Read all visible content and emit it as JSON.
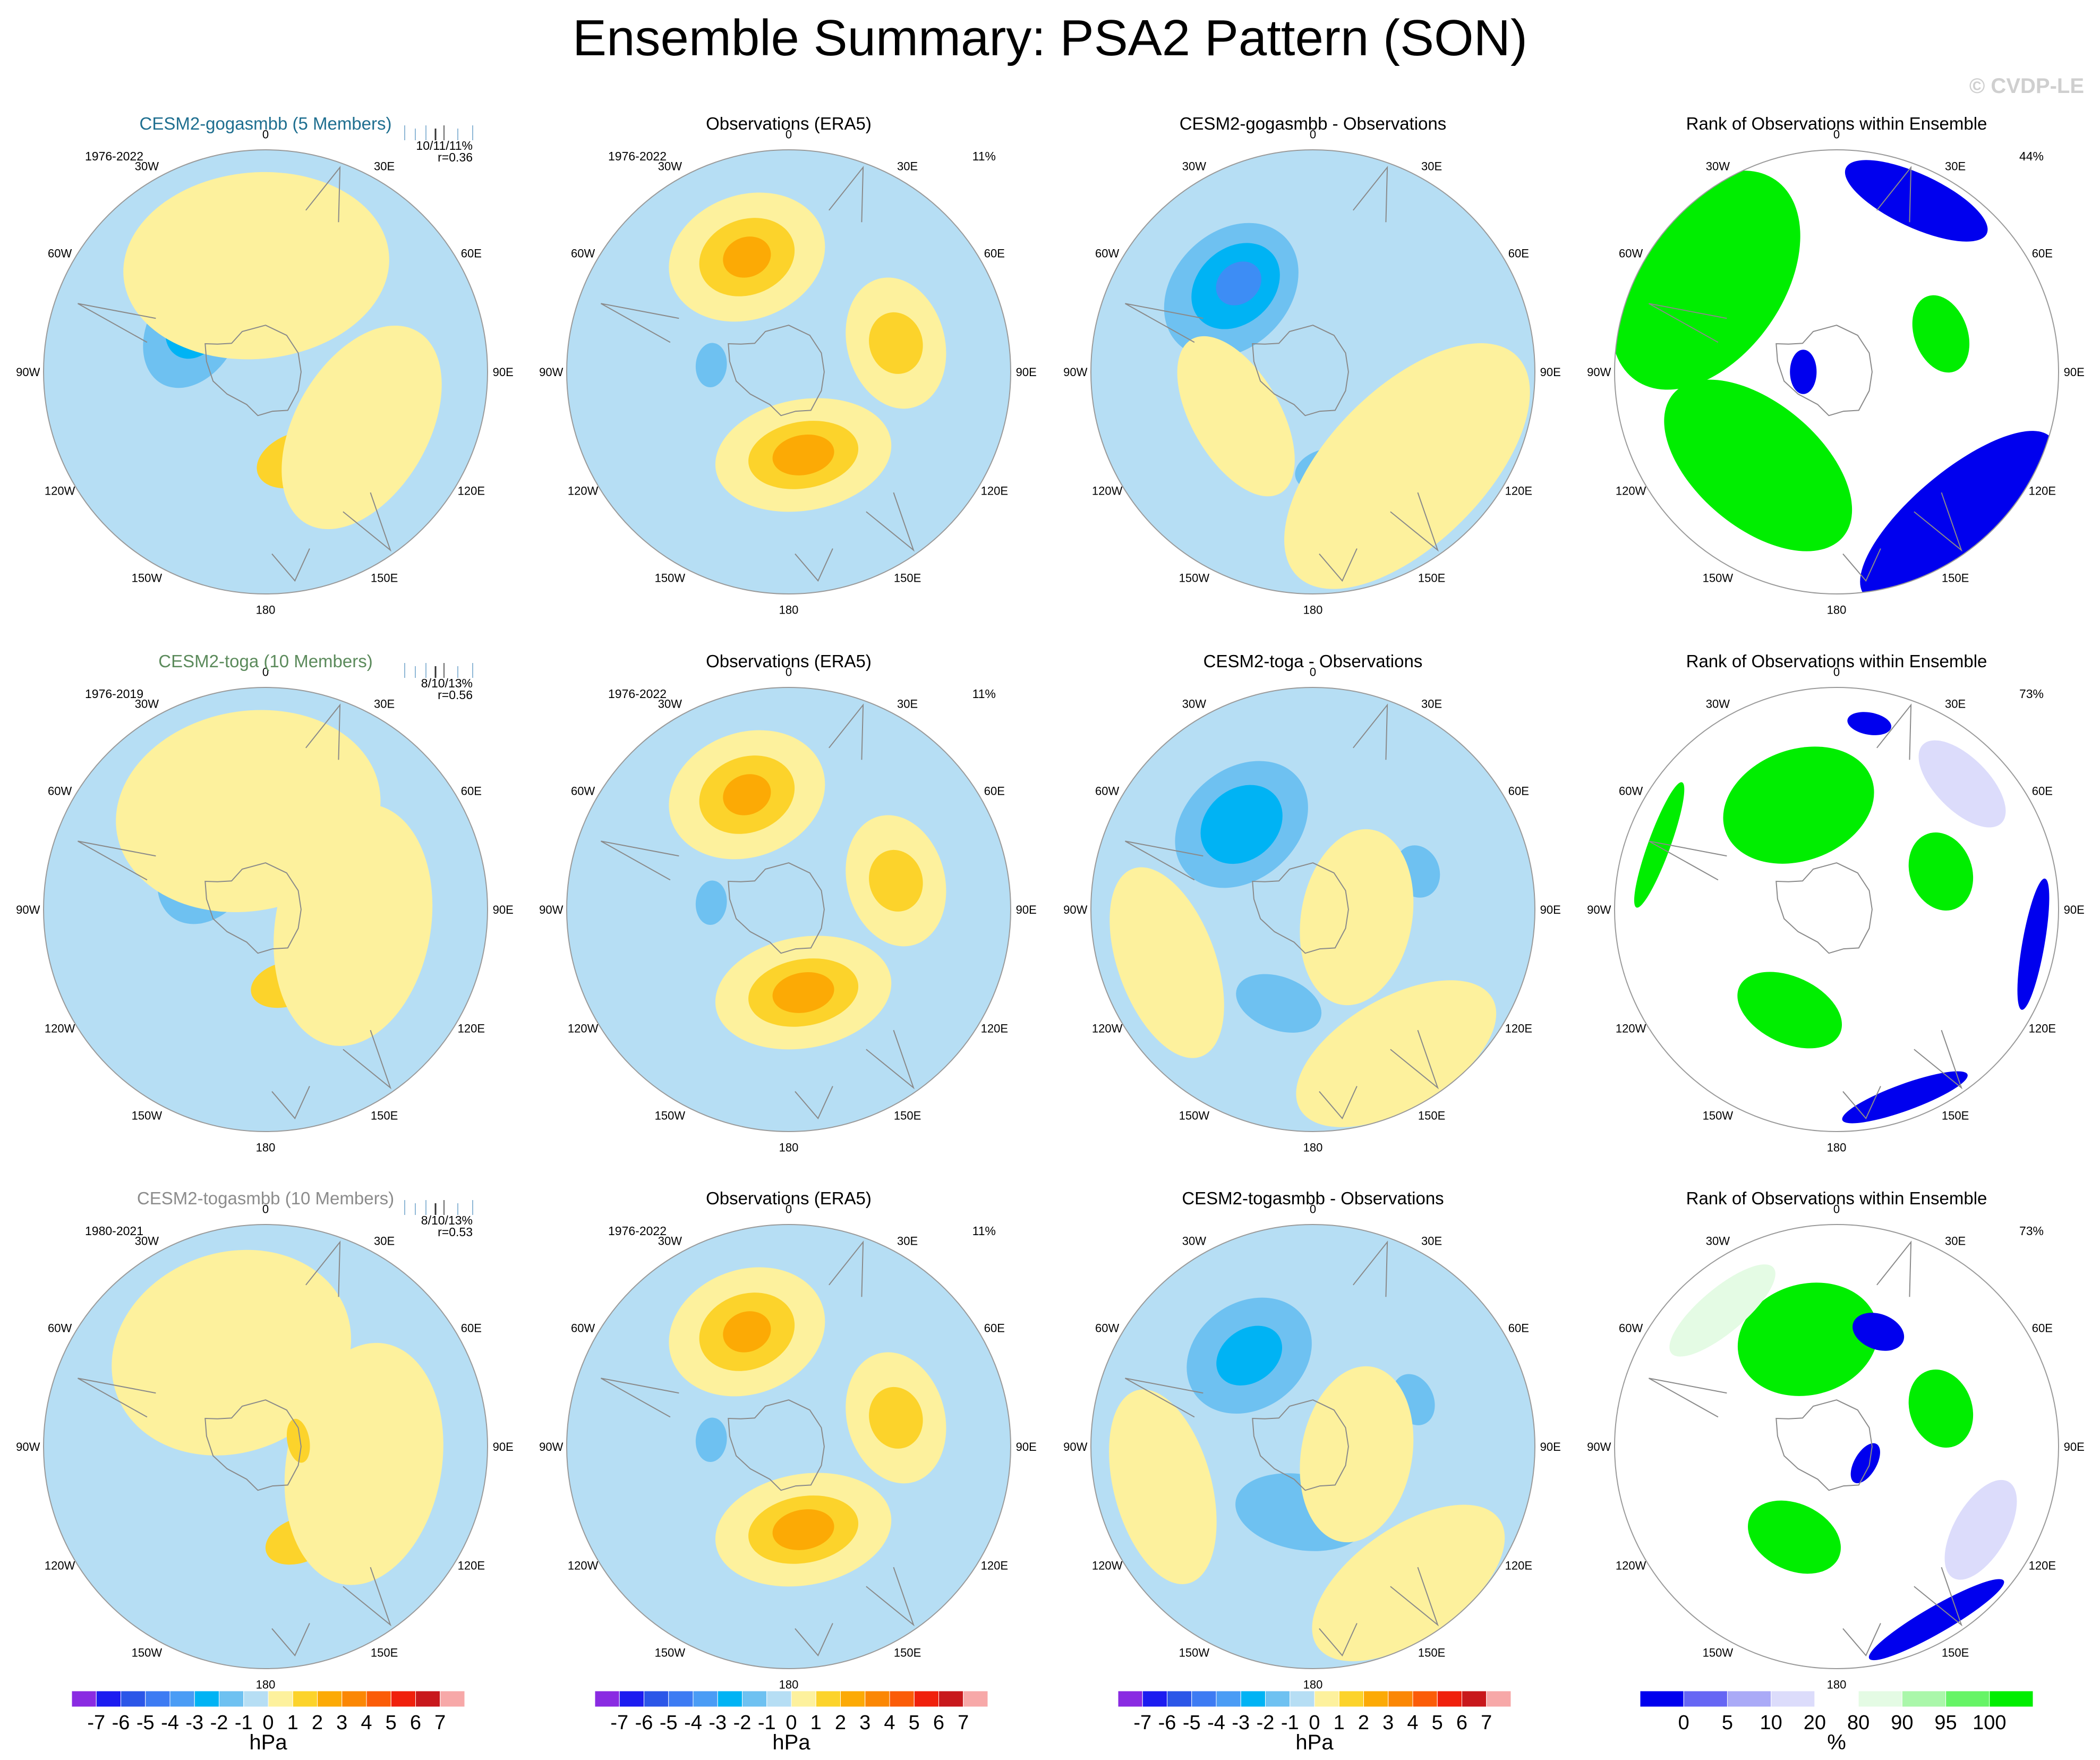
{
  "title": "Ensemble Summary: PSA2 Pattern (SON)",
  "watermark": "© CVDP-LE",
  "colors": {
    "land": "#d8d8d8",
    "coast": "#8a8a8a",
    "pos1": "#fdf19d",
    "pos2": "#fcd32b",
    "pos3": "#fcaa05",
    "neg1": "#b6def4",
    "neg2": "#6ec1f1",
    "neg3": "#00b3f4",
    "neg4": "#3d8df5",
    "rank_blue": "#0000ee",
    "rank_lightblue": "#dcdcfb",
    "rank_green": "#00ee00",
    "rank_lightgreen": "#e4fbe4"
  },
  "lon_labels": [
    "0",
    "30E",
    "60E",
    "90E",
    "120E",
    "150E",
    "180",
    "150W",
    "120W",
    "90W",
    "60W",
    "30W"
  ],
  "chart_data": [
    {
      "row": 0,
      "col": 0,
      "type": "polar-map",
      "title": "CESM2-gogasmbb (5 Members)",
      "title_color": "#1f6f90",
      "years": "1976-2022",
      "stats1": "10/11/11%",
      "stats2": "r=0.36",
      "field": [
        {
          "lon": -60,
          "colat": 0.38,
          "rx": 0.28,
          "ry": 0.2,
          "level": -2
        },
        {
          "lon": -58,
          "colat": 0.38,
          "rx": 0.15,
          "ry": 0.12,
          "level": -3
        },
        {
          "lon": -55,
          "colat": 0.37,
          "rx": 0.06,
          "ry": 0.05,
          "level": -4
        },
        {
          "lon": 160,
          "colat": 0.42,
          "rx": 0.19,
          "ry": 0.12,
          "level": 2
        },
        {
          "lon": -5,
          "colat": 0.48,
          "rx": 0.6,
          "ry": 0.42,
          "level": 1
        },
        {
          "lon": 120,
          "colat": 0.5,
          "rx": 0.5,
          "ry": 0.3,
          "level": 1
        }
      ]
    },
    {
      "row": 0,
      "col": 1,
      "type": "polar-map",
      "title": "Observations (ERA5)",
      "title_color": "#000000",
      "years": "1976-2022",
      "stats1": "11%",
      "stats2": "",
      "field": [
        {
          "lon": -20,
          "colat": 0.55,
          "rx": 0.36,
          "ry": 0.28,
          "level": 1
        },
        {
          "lon": -20,
          "colat": 0.55,
          "rx": 0.22,
          "ry": 0.17,
          "level": 2
        },
        {
          "lon": -20,
          "colat": 0.55,
          "rx": 0.11,
          "ry": 0.09,
          "level": 3
        },
        {
          "lon": 75,
          "colat": 0.5,
          "rx": 0.3,
          "ry": 0.22,
          "level": 1
        },
        {
          "lon": 75,
          "colat": 0.5,
          "rx": 0.14,
          "ry": 0.12,
          "level": 2
        },
        {
          "lon": 170,
          "colat": 0.38,
          "rx": 0.4,
          "ry": 0.25,
          "level": 1
        },
        {
          "lon": 170,
          "colat": 0.38,
          "rx": 0.25,
          "ry": 0.15,
          "level": 2
        },
        {
          "lon": 170,
          "colat": 0.38,
          "rx": 0.14,
          "ry": 0.09,
          "level": 3
        },
        {
          "lon": -85,
          "colat": 0.35,
          "rx": 0.1,
          "ry": 0.07,
          "level": -2
        }
      ]
    },
    {
      "row": 0,
      "col": 2,
      "type": "polar-map",
      "title": "CESM2-gogasmbb - Observations",
      "title_color": "#000000",
      "years": "",
      "stats1": "",
      "stats2": "",
      "field": [
        {
          "lon": -45,
          "colat": 0.52,
          "rx": 0.34,
          "ry": 0.26,
          "level": -2
        },
        {
          "lon": -42,
          "colat": 0.52,
          "rx": 0.22,
          "ry": 0.17,
          "level": -3
        },
        {
          "lon": -40,
          "colat": 0.52,
          "rx": 0.11,
          "ry": 0.09,
          "level": -4
        },
        {
          "lon": 170,
          "colat": 0.45,
          "rx": 0.16,
          "ry": 0.1,
          "level": -2
        },
        {
          "lon": 135,
          "colat": 0.6,
          "rx": 0.7,
          "ry": 0.35,
          "level": 1
        },
        {
          "lon": -120,
          "colat": 0.4,
          "rx": 0.4,
          "ry": 0.2,
          "level": 1
        }
      ]
    },
    {
      "row": 0,
      "col": 3,
      "type": "rank-map",
      "title": "Rank of Observations within Ensemble",
      "title_color": "#000000",
      "years": "",
      "stats1": "44%",
      "stats2": "",
      "field": [
        {
          "lon": -55,
          "colat": 0.72,
          "rx": 0.55,
          "ry": 0.35,
          "level": "green"
        },
        {
          "lon": 70,
          "colat": 0.5,
          "rx": 0.18,
          "ry": 0.12,
          "level": "green"
        },
        {
          "lon": -140,
          "colat": 0.55,
          "rx": 0.5,
          "ry": 0.28,
          "level": "green"
        },
        {
          "lon": 140,
          "colat": 0.85,
          "rx": 0.55,
          "ry": 0.2,
          "level": "blue"
        },
        {
          "lon": 25,
          "colat": 0.85,
          "rx": 0.35,
          "ry": 0.12,
          "level": "blue"
        },
        {
          "lon": -90,
          "colat": 0.15,
          "rx": 0.1,
          "ry": 0.06,
          "level": "blue"
        }
      ]
    },
    {
      "row": 1,
      "col": 0,
      "type": "polar-map",
      "title": "CESM2-toga (10 Members)",
      "title_color": "#5b8a5b",
      "years": "1976-2019",
      "stats1": "8/10/13%",
      "stats2": "r=0.56",
      "field": [
        {
          "lon": -55,
          "colat": 0.32,
          "rx": 0.27,
          "ry": 0.2,
          "level": -2
        },
        {
          "lon": -55,
          "colat": 0.32,
          "rx": 0.14,
          "ry": 0.12,
          "level": -3
        },
        {
          "lon": -50,
          "colat": 0.3,
          "rx": 0.06,
          "ry": 0.05,
          "level": -4
        },
        {
          "lon": 165,
          "colat": 0.35,
          "rx": 0.16,
          "ry": 0.1,
          "level": 2
        },
        {
          "lon": -10,
          "colat": 0.45,
          "rx": 0.6,
          "ry": 0.45,
          "level": 1
        },
        {
          "lon": 100,
          "colat": 0.4,
          "rx": 0.55,
          "ry": 0.35,
          "level": 1
        }
      ]
    },
    {
      "row": 1,
      "col": 1,
      "type": "polar-map",
      "title": "Observations (ERA5)",
      "title_color": "#000000",
      "years": "1976-2022",
      "stats1": "11%",
      "stats2": "",
      "field": [
        {
          "lon": -20,
          "colat": 0.55,
          "rx": 0.36,
          "ry": 0.28,
          "level": 1
        },
        {
          "lon": -20,
          "colat": 0.55,
          "rx": 0.22,
          "ry": 0.17,
          "level": 2
        },
        {
          "lon": -20,
          "colat": 0.55,
          "rx": 0.11,
          "ry": 0.09,
          "level": 3
        },
        {
          "lon": 75,
          "colat": 0.5,
          "rx": 0.3,
          "ry": 0.22,
          "level": 1
        },
        {
          "lon": 75,
          "colat": 0.5,
          "rx": 0.14,
          "ry": 0.12,
          "level": 2
        },
        {
          "lon": 170,
          "colat": 0.38,
          "rx": 0.4,
          "ry": 0.25,
          "level": 1
        },
        {
          "lon": 170,
          "colat": 0.38,
          "rx": 0.25,
          "ry": 0.15,
          "level": 2
        },
        {
          "lon": 170,
          "colat": 0.38,
          "rx": 0.14,
          "ry": 0.09,
          "level": 3
        },
        {
          "lon": -85,
          "colat": 0.35,
          "rx": 0.1,
          "ry": 0.07,
          "level": -2
        }
      ]
    },
    {
      "row": 1,
      "col": 2,
      "type": "polar-map",
      "title": "CESM2-toga - Observations",
      "title_color": "#000000",
      "years": "",
      "stats1": "",
      "stats2": "",
      "field": [
        {
          "lon": -40,
          "colat": 0.5,
          "rx": 0.33,
          "ry": 0.25,
          "level": -2
        },
        {
          "lon": -40,
          "colat": 0.5,
          "rx": 0.2,
          "ry": 0.16,
          "level": -3
        },
        {
          "lon": 70,
          "colat": 0.5,
          "rx": 0.12,
          "ry": 0.1,
          "level": -2
        },
        {
          "lon": -160,
          "colat": 0.45,
          "rx": 0.2,
          "ry": 0.12,
          "level": -2
        },
        {
          "lon": 100,
          "colat": 0.2,
          "rx": 0.4,
          "ry": 0.25,
          "level": 1
        },
        {
          "lon": -110,
          "colat": 0.7,
          "rx": 0.45,
          "ry": 0.22,
          "level": 1
        },
        {
          "lon": 150,
          "colat": 0.75,
          "rx": 0.5,
          "ry": 0.25,
          "level": 1
        }
      ]
    },
    {
      "row": 1,
      "col": 3,
      "type": "rank-map",
      "title": "Rank of Observations within Ensemble",
      "title_color": "#000000",
      "years": "",
      "stats1": "73%",
      "stats2": "",
      "field": [
        {
          "lon": -20,
          "colat": 0.5,
          "rx": 0.35,
          "ry": 0.25,
          "level": "green"
        },
        {
          "lon": 70,
          "colat": 0.5,
          "rx": 0.18,
          "ry": 0.14,
          "level": "green"
        },
        {
          "lon": -155,
          "colat": 0.5,
          "rx": 0.25,
          "ry": 0.15,
          "level": "green"
        },
        {
          "lon": -70,
          "colat": 0.85,
          "rx": 0.3,
          "ry": 0.05,
          "level": "green"
        },
        {
          "lon": 100,
          "colat": 0.9,
          "rx": 0.3,
          "ry": 0.05,
          "level": "blue"
        },
        {
          "lon": 160,
          "colat": 0.9,
          "rx": 0.3,
          "ry": 0.06,
          "level": "blue"
        },
        {
          "lon": 10,
          "colat": 0.85,
          "rx": 0.1,
          "ry": 0.05,
          "level": "blue"
        },
        {
          "lon": 45,
          "colat": 0.8,
          "rx": 0.25,
          "ry": 0.12,
          "level": "lightblue"
        }
      ]
    },
    {
      "row": 2,
      "col": 0,
      "type": "polar-map",
      "title": "CESM2-togasmbb (10 Members)",
      "title_color": "#8c8c8c",
      "years": "1980-2021",
      "stats1": "8/10/13%",
      "stats2": "r=0.53",
      "field": [
        {
          "lon": -55,
          "colat": 0.3,
          "rx": 0.22,
          "ry": 0.16,
          "level": -2
        },
        {
          "lon": 160,
          "colat": 0.45,
          "rx": 0.16,
          "ry": 0.1,
          "level": 2
        },
        {
          "lon": -20,
          "colat": 0.45,
          "rx": 0.55,
          "ry": 0.45,
          "level": 1
        },
        {
          "lon": 100,
          "colat": 0.45,
          "rx": 0.55,
          "ry": 0.35,
          "level": 1
        },
        {
          "lon": 80,
          "colat": 0.15,
          "rx": 0.1,
          "ry": 0.05,
          "level": 2
        }
      ]
    },
    {
      "row": 2,
      "col": 1,
      "type": "polar-map",
      "title": "Observations (ERA5)",
      "title_color": "#000000",
      "years": "1976-2022",
      "stats1": "11%",
      "stats2": "",
      "field": [
        {
          "lon": -20,
          "colat": 0.55,
          "rx": 0.36,
          "ry": 0.28,
          "level": 1
        },
        {
          "lon": -20,
          "colat": 0.55,
          "rx": 0.22,
          "ry": 0.17,
          "level": 2
        },
        {
          "lon": -20,
          "colat": 0.55,
          "rx": 0.11,
          "ry": 0.09,
          "level": 3
        },
        {
          "lon": 75,
          "colat": 0.5,
          "rx": 0.3,
          "ry": 0.22,
          "level": 1
        },
        {
          "lon": 75,
          "colat": 0.5,
          "rx": 0.14,
          "ry": 0.12,
          "level": 2
        },
        {
          "lon": 170,
          "colat": 0.38,
          "rx": 0.4,
          "ry": 0.25,
          "level": 1
        },
        {
          "lon": 170,
          "colat": 0.38,
          "rx": 0.25,
          "ry": 0.15,
          "level": 2
        },
        {
          "lon": 170,
          "colat": 0.38,
          "rx": 0.14,
          "ry": 0.09,
          "level": 3
        },
        {
          "lon": -85,
          "colat": 0.35,
          "rx": 0.1,
          "ry": 0.07,
          "level": -2
        }
      ]
    },
    {
      "row": 2,
      "col": 2,
      "type": "polar-map",
      "title": "CESM2-togasmbb - Observations",
      "title_color": "#000000",
      "years": "",
      "stats1": "",
      "stats2": "",
      "field": [
        {
          "lon": -35,
          "colat": 0.5,
          "rx": 0.3,
          "ry": 0.24,
          "level": -2
        },
        {
          "lon": -35,
          "colat": 0.5,
          "rx": 0.16,
          "ry": 0.12,
          "level": -3
        },
        {
          "lon": 65,
          "colat": 0.5,
          "rx": 0.12,
          "ry": 0.09,
          "level": -2
        },
        {
          "lon": -170,
          "colat": 0.3,
          "rx": 0.3,
          "ry": 0.17,
          "level": -2
        },
        {
          "lon": 100,
          "colat": 0.2,
          "rx": 0.4,
          "ry": 0.25,
          "level": 1
        },
        {
          "lon": -105,
          "colat": 0.7,
          "rx": 0.45,
          "ry": 0.22,
          "level": 1
        },
        {
          "lon": 145,
          "colat": 0.75,
          "rx": 0.5,
          "ry": 0.25,
          "level": 1
        }
      ]
    },
    {
      "row": 2,
      "col": 3,
      "type": "rank-map",
      "title": "Rank of Observations within Ensemble",
      "title_color": "#000000",
      "years": "",
      "stats1": "73%",
      "stats2": "",
      "field": [
        {
          "lon": -15,
          "colat": 0.5,
          "rx": 0.32,
          "ry": 0.25,
          "level": "green"
        },
        {
          "lon": 70,
          "colat": 0.5,
          "rx": 0.18,
          "ry": 0.14,
          "level": "green"
        },
        {
          "lon": -155,
          "colat": 0.45,
          "rx": 0.22,
          "ry": 0.15,
          "level": "green"
        },
        {
          "lon": 120,
          "colat": 0.15,
          "rx": 0.1,
          "ry": 0.05,
          "level": "blue"
        },
        {
          "lon": 20,
          "colat": 0.55,
          "rx": 0.12,
          "ry": 0.08,
          "level": "blue"
        },
        {
          "lon": 150,
          "colat": 0.9,
          "rx": 0.35,
          "ry": 0.06,
          "level": "blue"
        },
        {
          "lon": -40,
          "colat": 0.8,
          "rx": 0.3,
          "ry": 0.1,
          "level": "lightgreen"
        },
        {
          "lon": 120,
          "colat": 0.75,
          "rx": 0.25,
          "ry": 0.12,
          "level": "lightblue"
        }
      ]
    }
  ],
  "colorbar_hpa": {
    "unit": "hPa",
    "tick_labels": [
      "-7",
      "-6",
      "-5",
      "-4",
      "-3",
      "-2",
      "-1",
      "0",
      "1",
      "2",
      "3",
      "4",
      "5",
      "6",
      "7"
    ],
    "colors": [
      "#8a2be2",
      "#1c1cf0",
      "#2b56e8",
      "#3d7bf3",
      "#4a9cf5",
      "#00b3f4",
      "#6ec1f1",
      "#b6def4",
      "#fdf19d",
      "#fcd32b",
      "#fcaa05",
      "#fb8704",
      "#fb5c08",
      "#f0200c",
      "#c8181c",
      "#f7a8a8"
    ]
  },
  "colorbar_rank": {
    "unit": "%",
    "tick_labels": [
      "0",
      "5",
      "10",
      "20",
      "80",
      "90",
      "95",
      "100"
    ],
    "colors": [
      "#0000ee",
      "#6666f4",
      "#aaaaf7",
      "#dcdcfb",
      "#ffffff",
      "#e4fbe4",
      "#aaf7aa",
      "#66f466",
      "#00ee00"
    ]
  }
}
